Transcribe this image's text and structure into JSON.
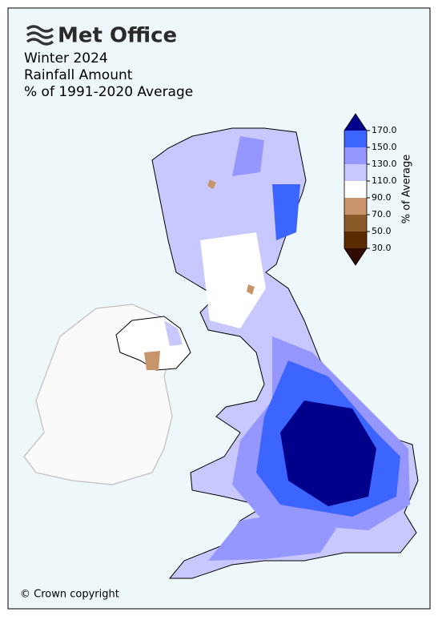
{
  "header": {
    "logo": "Met Office",
    "title": [
      "Winter 2024",
      "Rainfall Amount",
      "% of 1991-2020 Average"
    ]
  },
  "colorbar": {
    "label": "% of Average",
    "ticks": [
      {
        "value": 30,
        "label": "30.0"
      },
      {
        "value": 50,
        "label": "50.0"
      },
      {
        "value": 70,
        "label": "70.0"
      },
      {
        "value": 90,
        "label": "90.0"
      },
      {
        "value": 110,
        "label": "110.0"
      },
      {
        "value": 130,
        "label": "130.0"
      },
      {
        "value": 150,
        "label": "150.0"
      },
      {
        "value": 170,
        "label": "170.0"
      }
    ],
    "lim": [
      30,
      170
    ],
    "colors": [
      "#2e0a00",
      "#5a2a00",
      "#8b5a2b",
      "#c8956a",
      "#ffffff",
      "#c8c8ff",
      "#9696ff",
      "#3c64ff",
      "#00008b"
    ]
  },
  "footer": {
    "copyright": "© Crown copyright"
  }
}
